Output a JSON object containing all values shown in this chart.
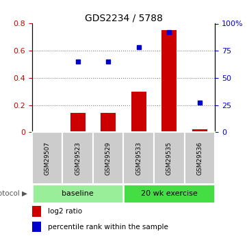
{
  "title": "GDS2234 / 5788",
  "samples": [
    "GSM29507",
    "GSM29523",
    "GSM29529",
    "GSM29533",
    "GSM29535",
    "GSM29536"
  ],
  "log2_ratio": [
    0.0,
    0.14,
    0.14,
    0.3,
    0.75,
    0.02
  ],
  "percentile_rank": [
    null,
    65,
    65,
    78,
    92,
    27
  ],
  "bar_color": "#cc0000",
  "dot_color": "#0000cc",
  "ylim_left": [
    0,
    0.8
  ],
  "ylim_right": [
    0,
    100
  ],
  "yticks_left": [
    0,
    0.2,
    0.4,
    0.6,
    0.8
  ],
  "yticks_right": [
    0,
    25,
    50,
    75,
    100
  ],
  "ytick_labels_left": [
    "0",
    "0.2",
    "0.4",
    "0.6",
    "0.8"
  ],
  "ytick_labels_right": [
    "0",
    "25",
    "50",
    "75",
    "100%"
  ],
  "baseline_color": "#99ee99",
  "exercise_color": "#44dd44",
  "label_cell_color": "#cccccc",
  "baseline_label": "baseline",
  "exercise_label": "20 wk exercise",
  "protocol_label": "protocol",
  "legend_bar_label": "log2 ratio",
  "legend_dot_label": "percentile rank within the sample",
  "grid_color": "black",
  "grid_alpha": 0.3
}
